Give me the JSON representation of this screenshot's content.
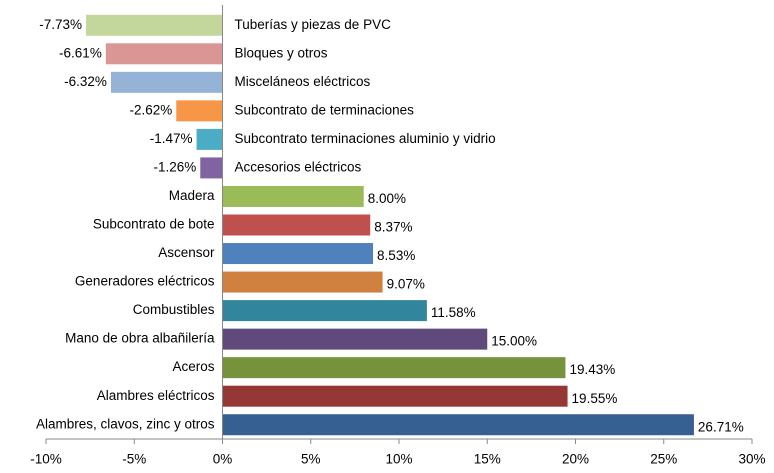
{
  "chart_data": {
    "type": "bar",
    "orientation": "horizontal",
    "categories": [
      "Tuberías y piezas de PVC",
      "Bloques y otros",
      "Misceláneos eléctricos",
      "Subcontrato de terminaciones",
      "Subcontrato terminaciones aluminio y vidrio",
      "Accesorios eléctricos",
      "Madera",
      "Subcontrato de bote",
      "Ascensor",
      "Generadores eléctricos",
      "Combustibles",
      "Mano de obra albañilería",
      "Aceros",
      "Alambres eléctricos",
      "Alambres, clavos, zinc y otros"
    ],
    "values": [
      -7.73,
      -6.61,
      -6.32,
      -2.62,
      -1.47,
      -1.26,
      8.0,
      8.37,
      8.53,
      9.07,
      11.58,
      15.0,
      19.43,
      19.55,
      26.71
    ],
    "value_labels": [
      "-7.73%",
      "-6.61%",
      "-6.32%",
      "-2.62%",
      "-1.47%",
      "-1.26%",
      "8.00%",
      "8.37%",
      "8.53%",
      "9.07%",
      "11.58%",
      "15.00%",
      "19.43%",
      "19.55%",
      "26.71%"
    ],
    "colors": [
      "#c3d69b",
      "#d99694",
      "#95b3d7",
      "#f79646",
      "#4bacc6",
      "#8064a2",
      "#9bbb59",
      "#c0504d",
      "#4f81bd",
      "#d0803f",
      "#31859c",
      "#604a7b",
      "#76923c",
      "#953735",
      "#366092"
    ],
    "xlim": [
      -10,
      30
    ],
    "xticks": [
      {
        "value": -10,
        "label": "-10%"
      },
      {
        "value": -5,
        "label": "-5%"
      },
      {
        "value": 0,
        "label": "0%"
      },
      {
        "value": 5,
        "label": "5%"
      },
      {
        "value": 10,
        "label": "10%"
      },
      {
        "value": 15,
        "label": "15%"
      },
      {
        "value": 20,
        "label": "20%"
      },
      {
        "value": 25,
        "label": "25%"
      },
      {
        "value": 30,
        "label": "30%"
      }
    ],
    "grid": false
  }
}
